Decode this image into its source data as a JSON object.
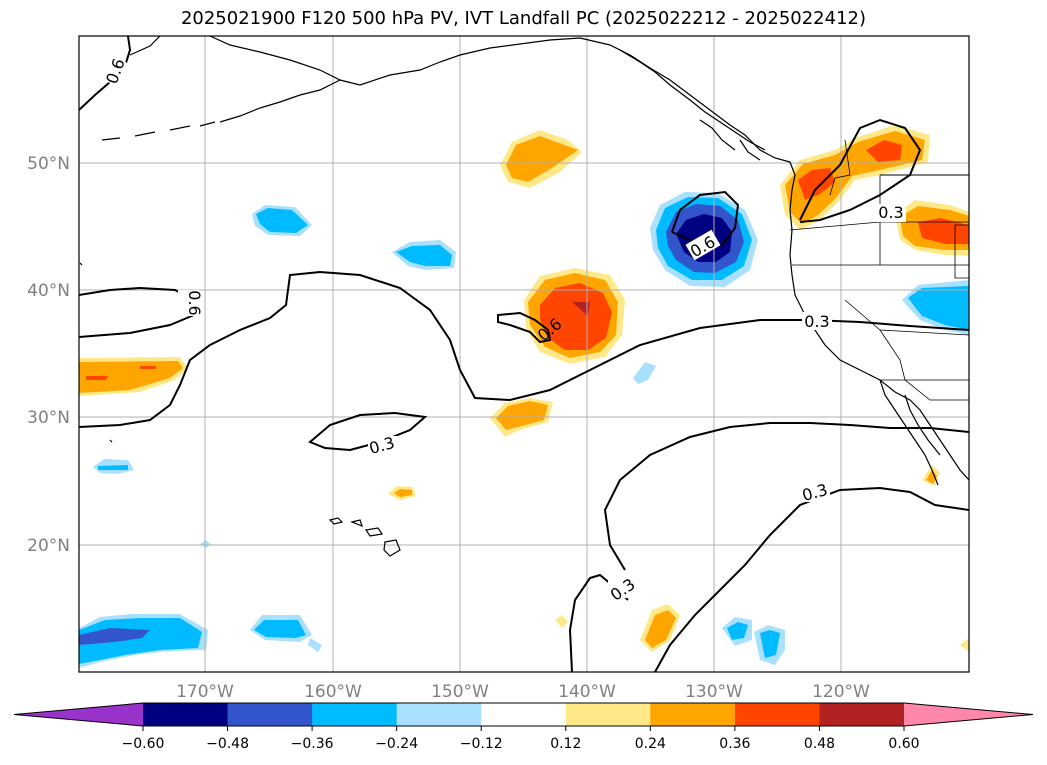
{
  "title": "2025021900 F120 500 hPa PV, IVT Landfall PC (2025022212 - 2025022412)",
  "map": {
    "lat_labels": [
      "50°N",
      "40°N",
      "30°N",
      "20°N"
    ],
    "lon_labels": [
      "170°W",
      "160°W",
      "150°W",
      "140°W",
      "130°W",
      "120°W"
    ],
    "contour_labels": [
      "0.6",
      "0.6",
      "0.6",
      "0.3",
      "0.3",
      "0.3",
      "0.3",
      "0.3",
      "0.6"
    ]
  },
  "colorbar": {
    "ticks": [
      "−0.60",
      "−0.48",
      "−0.36",
      "−0.24",
      "−0.12",
      "0.12",
      "0.24",
      "0.36",
      "0.48",
      "0.60"
    ],
    "colors": [
      "#9933cc",
      "#000080",
      "#3355cc",
      "#00bbff",
      "#aae0ff",
      "#ffffff",
      "#ffe888",
      "#ffa500",
      "#ff4500",
      "#b22222",
      "#ff88aa"
    ]
  },
  "shading_colors": {
    "neg_light": "#aae0ff",
    "neg_mid": "#00bbff",
    "neg_dark": "#3355cc",
    "neg_darkest": "#000080",
    "pos_light": "#ffe888",
    "pos_mid": "#ffa500",
    "pos_dark": "#ff4500",
    "pos_darkest": "#b22222"
  }
}
